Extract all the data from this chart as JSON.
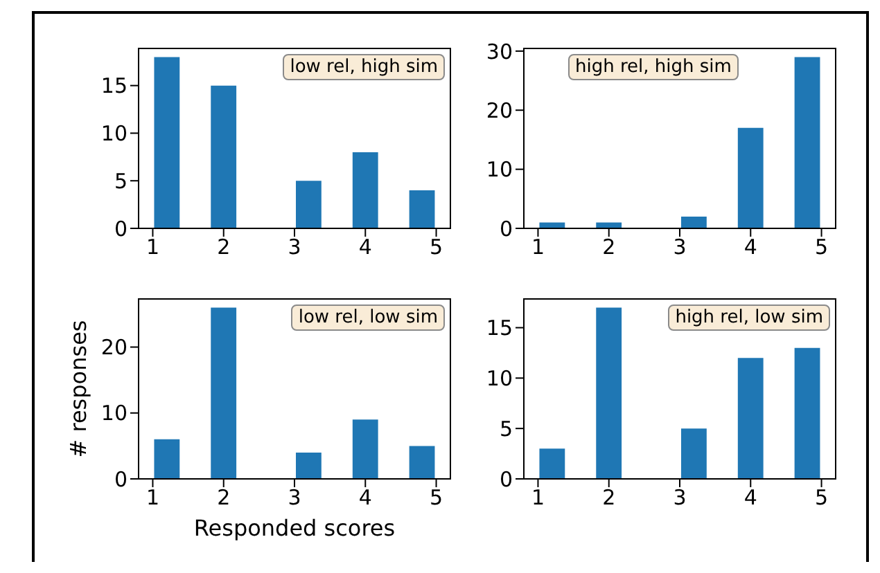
{
  "chart_data": [
    {
      "type": "histogram",
      "bins": [
        1,
        1.4,
        1.8,
        2.2,
        2.6,
        3,
        3.4,
        3.8,
        4.2,
        4.6,
        5
      ],
      "values": [
        18,
        0,
        15,
        0,
        0,
        5,
        0,
        8,
        0,
        4
      ],
      "color": "#1f77b4",
      "xlim": [
        0.8,
        5.2
      ],
      "xticks": [
        1,
        2,
        3,
        4,
        5
      ],
      "ylim": [
        0,
        18.9
      ],
      "yticks": [
        0,
        5,
        10,
        15
      ],
      "annotations": [
        "low rel, high sim"
      ]
    },
    {
      "type": "histogram",
      "bins": [
        1,
        1.4,
        1.8,
        2.2,
        2.6,
        3,
        3.4,
        3.8,
        4.2,
        4.6,
        5
      ],
      "values": [
        1,
        0,
        1,
        0,
        0,
        2,
        0,
        17,
        0,
        29
      ],
      "color": "#1f77b4",
      "xlim": [
        0.8,
        5.2
      ],
      "xticks": [
        1,
        2,
        3,
        4,
        5
      ],
      "ylim": [
        0,
        30.45
      ],
      "yticks": [
        0,
        10,
        20,
        30
      ],
      "annotations": [
        "high rel, high sim"
      ]
    },
    {
      "type": "histogram",
      "bins": [
        1,
        1.4,
        1.8,
        2.2,
        2.6,
        3,
        3.4,
        3.8,
        4.2,
        4.6,
        5
      ],
      "values": [
        6,
        0,
        26,
        0,
        0,
        4,
        0,
        9,
        0,
        5
      ],
      "color": "#1f77b4",
      "xlim": [
        0.8,
        5.2
      ],
      "xticks": [
        1,
        2,
        3,
        4,
        5
      ],
      "ylim": [
        0,
        27.3
      ],
      "yticks": [
        0,
        10,
        20
      ],
      "xlabel": "Responded scores",
      "ylabel": "# responses",
      "annotations": [
        "low rel, low sim"
      ]
    },
    {
      "type": "histogram",
      "bins": [
        1,
        1.4,
        1.8,
        2.2,
        2.6,
        3,
        3.4,
        3.8,
        4.2,
        4.6,
        5
      ],
      "values": [
        3,
        0,
        17,
        0,
        0,
        5,
        0,
        12,
        0,
        13
      ],
      "color": "#1f77b4",
      "xlim": [
        0.8,
        5.2
      ],
      "xticks": [
        1,
        2,
        3,
        4,
        5
      ],
      "ylim": [
        0,
        17.85
      ],
      "yticks": [
        0,
        5,
        10,
        15
      ],
      "annotations": [
        "high rel, low sim"
      ]
    }
  ]
}
